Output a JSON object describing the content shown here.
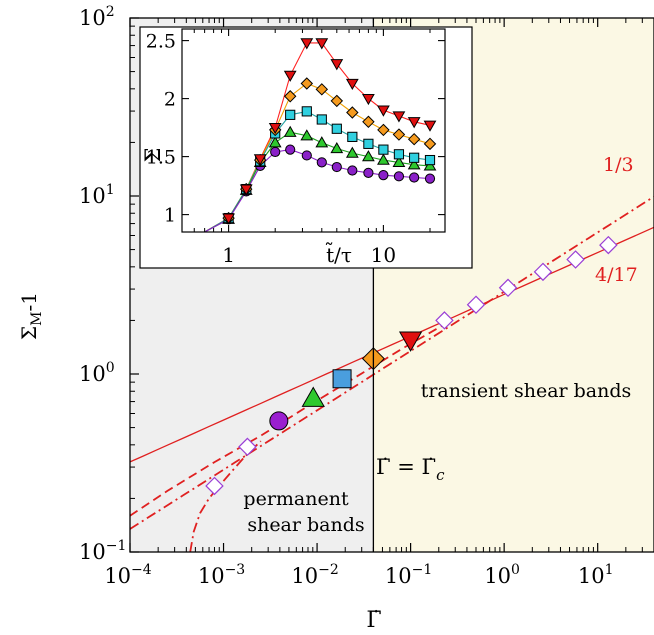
{
  "chart_data": [
    {
      "type": "scatter",
      "xscale": "log",
      "yscale": "log",
      "xlim": [
        0.0001,
        40
      ],
      "ylim": [
        0.1,
        100
      ],
      "xlabel": "Γ̇",
      "ylabel": "Σ_M-1",
      "x_ticks": [
        {
          "value": 0.0001,
          "base": "10",
          "exp": "−4"
        },
        {
          "value": 0.001,
          "base": "10",
          "exp": "−3"
        },
        {
          "value": 0.01,
          "base": "10",
          "exp": "−2"
        },
        {
          "value": 0.1,
          "base": "10",
          "exp": "−1"
        },
        {
          "value": 1,
          "base": "10",
          "exp": "0"
        },
        {
          "value": 10,
          "base": "10",
          "exp": "1"
        }
      ],
      "y_ticks": [
        {
          "value": 0.1,
          "base": "10",
          "exp": "−1"
        },
        {
          "value": 1,
          "base": "10",
          "exp": "0"
        },
        {
          "value": 10,
          "base": "10",
          "exp": "1"
        },
        {
          "value": 100,
          "base": "10",
          "exp": "2"
        }
      ],
      "regions": [
        {
          "x_from": 0.0001,
          "x_to": 0.04,
          "color": "#efefef",
          "label_lines": [
            "permanent",
            "shear bands"
          ]
        },
        {
          "x_from": 0.04,
          "x_to": 40,
          "color": "#fbf8e4",
          "label_lines": [
            "transient shear bands"
          ]
        }
      ],
      "divider": {
        "x": 0.04,
        "label": "Γ̇ = Γ̇c"
      },
      "series": [
        {
          "marker": "diamond-open",
          "color": "#9a3fd6",
          "points": [
            {
              "x": 0.0008,
              "y": 0.235
            },
            {
              "x": 0.0018,
              "y": 0.39
            },
            {
              "x": 0.23,
              "y": 2.0
            },
            {
              "x": 0.5,
              "y": 2.45
            },
            {
              "x": 1.1,
              "y": 3.05
            },
            {
              "x": 2.6,
              "y": 3.75
            },
            {
              "x": 5.8,
              "y": 4.4
            },
            {
              "x": 13,
              "y": 5.3
            }
          ]
        },
        {
          "marker": "circle",
          "color": "#9a1fd0",
          "points": [
            {
              "x": 0.0039,
              "y": 0.545
            }
          ]
        },
        {
          "marker": "triangle-up",
          "color": "#2ec82e",
          "points": [
            {
              "x": 0.0091,
              "y": 0.73
            }
          ]
        },
        {
          "marker": "square",
          "color": "#4a9ede",
          "points": [
            {
              "x": 0.0185,
              "y": 0.94
            }
          ]
        },
        {
          "marker": "diamond",
          "color": "#f59a1e",
          "points": [
            {
              "x": 0.04,
              "y": 1.22
            }
          ]
        },
        {
          "marker": "triangle-down",
          "color": "#e01010",
          "points": [
            {
              "x": 0.1,
              "y": 1.55
            }
          ]
        }
      ],
      "fits": [
        {
          "label": "4/17",
          "slope": 0.23529,
          "x0": 1,
          "y0": 2.8,
          "x_from": 0.0001,
          "x_to": 40,
          "style": "solid",
          "color": "#e02020"
        },
        {
          "label": "1/3",
          "slope": 0.33333,
          "x0": 1,
          "y0": 2.9,
          "x_from": 0.0001,
          "x_to": 40,
          "style": "dashdot",
          "color": "#e02020"
        },
        {
          "style": "dashed",
          "color": "#e02020",
          "points": [
            {
              "x": 0.0001,
              "y": 0.16
            },
            {
              "x": 0.00025,
              "y": 0.22
            },
            {
              "x": 0.0008,
              "y": 0.32
            },
            {
              "x": 0.0025,
              "y": 0.45
            },
            {
              "x": 0.008,
              "y": 0.66
            },
            {
              "x": 0.025,
              "y": 0.95
            },
            {
              "x": 0.08,
              "y": 1.38
            },
            {
              "x": 0.25,
              "y": 1.95
            }
          ]
        },
        {
          "style": "dashdot",
          "color": "#e02020",
          "points": [
            {
              "x": 0.00044,
              "y": 0.1
            },
            {
              "x": 0.00048,
              "y": 0.13
            },
            {
              "x": 0.00056,
              "y": 0.165
            },
            {
              "x": 0.0007,
              "y": 0.2
            },
            {
              "x": 0.0009,
              "y": 0.235
            },
            {
              "x": 0.0012,
              "y": 0.28
            },
            {
              "x": 0.0017,
              "y": 0.345
            },
            {
              "x": 0.0025,
              "y": 0.42
            }
          ]
        }
      ]
    },
    {
      "type": "line",
      "inset": true,
      "xscale": "log",
      "xlim": [
        0.5,
        25
      ],
      "ylim": [
        0.85,
        2.6
      ],
      "xlabel": "t̃/τ",
      "ylabel": "Σ",
      "x_ticks": [
        {
          "value": 1,
          "label": "1"
        },
        {
          "value": 10,
          "label": "10"
        }
      ],
      "y_ticks": [
        {
          "value": 1,
          "label": "1"
        },
        {
          "value": 1.5,
          "label": "1.5"
        },
        {
          "value": 2,
          "label": "2"
        },
        {
          "value": 2.5,
          "label": "2.5"
        }
      ],
      "x": [
        1.0,
        1.3,
        1.6,
        2.0,
        2.5,
        3.2,
        4.0,
        5.0,
        6.3,
        8.0,
        10,
        12.6,
        15.8,
        20
      ],
      "series": [
        {
          "marker": "triangle-down",
          "color": "#e01010",
          "fit_color": "#ff2020",
          "values": [
            0.97,
            1.22,
            1.48,
            1.75,
            2.2,
            2.48,
            2.48,
            2.3,
            2.13,
            2.0,
            1.9,
            1.85,
            1.8,
            1.77
          ]
        },
        {
          "marker": "diamond",
          "color": "#f59a1e",
          "fit_color": "#f0a000",
          "values": [
            0.97,
            1.22,
            1.47,
            1.73,
            2.02,
            2.13,
            2.08,
            1.98,
            1.88,
            1.8,
            1.73,
            1.69,
            1.65,
            1.61
          ]
        },
        {
          "marker": "square",
          "color": "#30d0e0",
          "fit_color": "#20a0a0",
          "values": [
            0.97,
            1.22,
            1.46,
            1.7,
            1.86,
            1.89,
            1.82,
            1.74,
            1.67,
            1.61,
            1.56,
            1.52,
            1.49,
            1.47
          ]
        },
        {
          "marker": "triangle-up",
          "color": "#2ec82e",
          "fit_color": "#20a020",
          "values": [
            0.96,
            1.21,
            1.45,
            1.62,
            1.71,
            1.68,
            1.62,
            1.57,
            1.53,
            1.5,
            1.47,
            1.45,
            1.43,
            1.42
          ]
        },
        {
          "marker": "circle",
          "color": "#8a20c8",
          "fit_color": "#8a20c8",
          "values": [
            0.96,
            1.2,
            1.42,
            1.54,
            1.56,
            1.51,
            1.45,
            1.41,
            1.38,
            1.36,
            1.34,
            1.33,
            1.32,
            1.31
          ]
        }
      ]
    }
  ]
}
